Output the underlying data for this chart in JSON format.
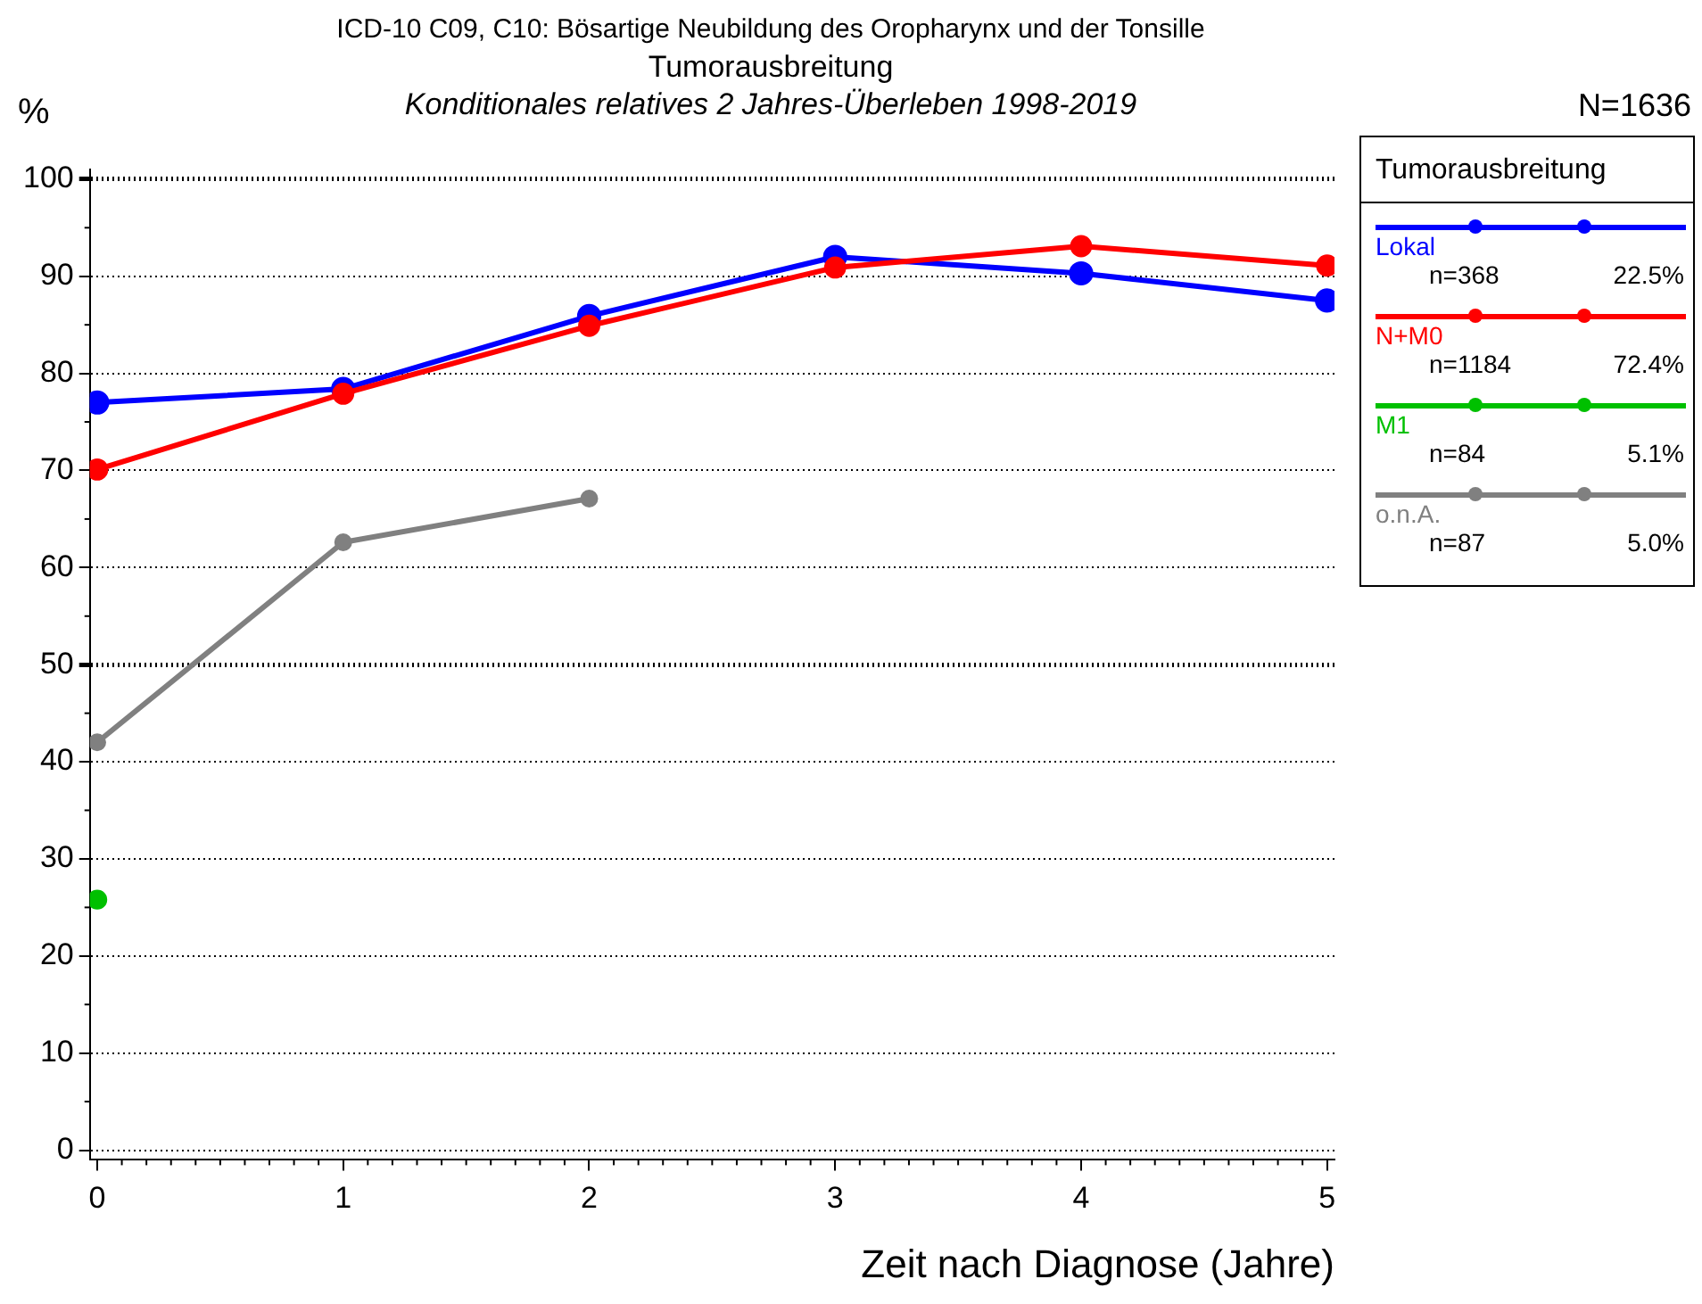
{
  "chart_data": {
    "type": "line",
    "title": "ICD-10 C09, C10: Bösartige Neubildung des Oropharynx und der Tonsille",
    "subtitle": "Tumorausbreitung",
    "xlabel": "Zeit nach Diagnose (Jahre)",
    "ylabel": "%",
    "legend_title": "Tumorausbreitung",
    "annotations": [
      "Konditionales relatives 2 Jahres-Überleben 1998-2019",
      "N=1636",
      "n=368",
      "22.5%",
      "n=1184",
      "72.4%",
      "n=84",
      "5.1%",
      "n=87",
      "5.0%"
    ],
    "x": [
      0,
      1,
      2,
      3,
      4,
      5
    ],
    "series": [
      {
        "name": "Lokal",
        "color": "#0000ff",
        "values": [
          77.0,
          78.4,
          85.9,
          92.0,
          90.3,
          87.5
        ]
      },
      {
        "name": "N+M0",
        "color": "#ff0000",
        "values": [
          70.1,
          77.9,
          84.9,
          90.9,
          93.1,
          91.1
        ]
      },
      {
        "name": "M1",
        "color": "#00c000",
        "values": [
          25.8,
          null,
          null,
          null,
          null,
          null
        ]
      },
      {
        "name": "o.n.A.",
        "color": "#808080",
        "values": [
          42.0,
          62.6,
          67.1,
          null,
          null,
          null
        ]
      }
    ],
    "xlim": [
      -0.03,
      5.03
    ],
    "xticks": [
      0,
      1,
      2,
      3,
      4,
      5
    ],
    "ylim": [
      -1,
      101
    ],
    "yticks": [
      0,
      10,
      20,
      30,
      40,
      50,
      60,
      70,
      80,
      90,
      100
    ],
    "grid": "y",
    "legend": "top right",
    "marker": "circle",
    "line_style": "solid"
  }
}
